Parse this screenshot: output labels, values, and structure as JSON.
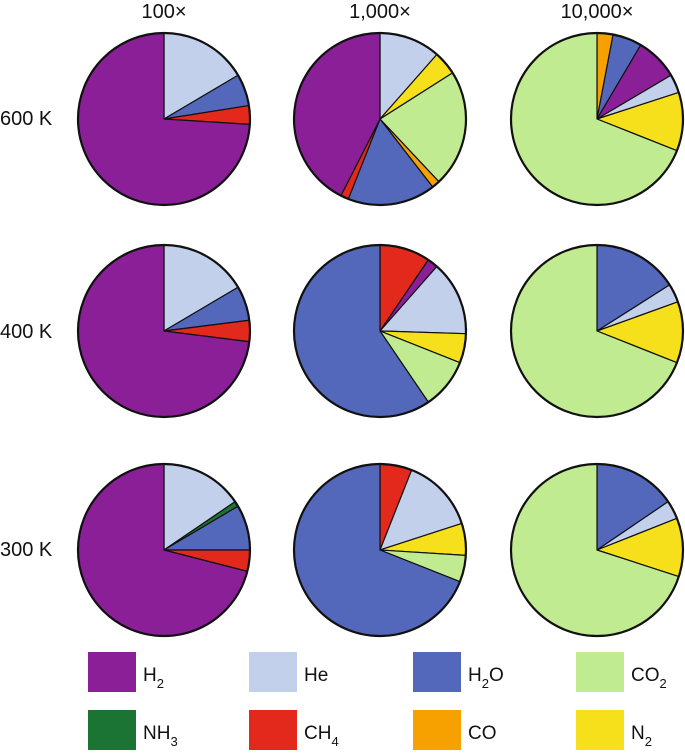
{
  "chart_data": {
    "type": "pie",
    "columns": [
      "100×",
      "1,000×",
      "10,000×"
    ],
    "rows": [
      "600 K",
      "400 K",
      "300 K"
    ],
    "species": [
      {
        "key": "H2",
        "base": "H",
        "sub": "2",
        "suffix": "",
        "color": "#8a1f98"
      },
      {
        "key": "He",
        "base": "He",
        "sub": "",
        "suffix": "",
        "color": "#c2d0eb"
      },
      {
        "key": "H2O",
        "base": "H",
        "sub": "2",
        "suffix": "O",
        "color": "#5468bb"
      },
      {
        "key": "CO2",
        "base": "CO",
        "sub": "2",
        "suffix": "",
        "color": "#c0eb91"
      },
      {
        "key": "NH3",
        "base": "NH",
        "sub": "3",
        "suffix": "",
        "color": "#1c7434"
      },
      {
        "key": "CH4",
        "base": "CH",
        "sub": "4",
        "suffix": "",
        "color": "#e3281c"
      },
      {
        "key": "CO",
        "base": "CO",
        "sub": "",
        "suffix": "",
        "color": "#f6a100"
      },
      {
        "key": "N2",
        "base": "N",
        "sub": "2",
        "suffix": "",
        "color": "#f6e01b"
      }
    ],
    "pies": [
      {
        "row": "600 K",
        "column": "100×",
        "slices": {
          "He": 16.5,
          "H2O": 6.0,
          "CH4": 3.5,
          "H2": 74.0
        }
      },
      {
        "row": "600 K",
        "column": "1,000×",
        "slices": {
          "He": 11.5,
          "N2": 4.5,
          "CO2": 22.0,
          "CO": 1.5,
          "H2O": 16.5,
          "CH4": 1.5,
          "H2": 42.5
        }
      },
      {
        "row": "600 K",
        "column": "10,000×",
        "slices": {
          "CO": 3.0,
          "H2O": 5.5,
          "H2": 8.0,
          "He": 3.5,
          "N2": 11.0,
          "CO2": 69.0
        }
      },
      {
        "row": "400 K",
        "column": "100×",
        "slices": {
          "He": 16.5,
          "H2O": 6.5,
          "CH4": 4.0,
          "H2": 73.0
        }
      },
      {
        "row": "400 K",
        "column": "1,000×",
        "slices": {
          "CH4": 9.5,
          "H2": 2.0,
          "He": 14.0,
          "N2": 5.5,
          "CO2": 9.5,
          "H2O": 59.5
        }
      },
      {
        "row": "400 K",
        "column": "10,000×",
        "slices": {
          "H2O": 16.0,
          "He": 3.5,
          "N2": 11.5,
          "CO2": 69.0
        }
      },
      {
        "row": "300 K",
        "column": "100×",
        "slices": {
          "He": 15.5,
          "NH3": 1.0,
          "H2O": 8.5,
          "CH4": 4.0,
          "H2": 71.0
        }
      },
      {
        "row": "300 K",
        "column": "1,000×",
        "slices": {
          "CH4": 6.0,
          "He": 14.0,
          "N2": 6.0,
          "CO2": 5.0,
          "H2O": 69.0
        }
      },
      {
        "row": "300 K",
        "column": "10,000×",
        "slices": {
          "H2O": 15.5,
          "He": 3.5,
          "N2": 11.0,
          "CO2": 70.0
        }
      }
    ],
    "legend_order": [
      [
        "H2",
        "He",
        "H2O",
        "CO2"
      ],
      [
        "NH3",
        "CH4",
        "CO",
        "N2"
      ]
    ]
  }
}
